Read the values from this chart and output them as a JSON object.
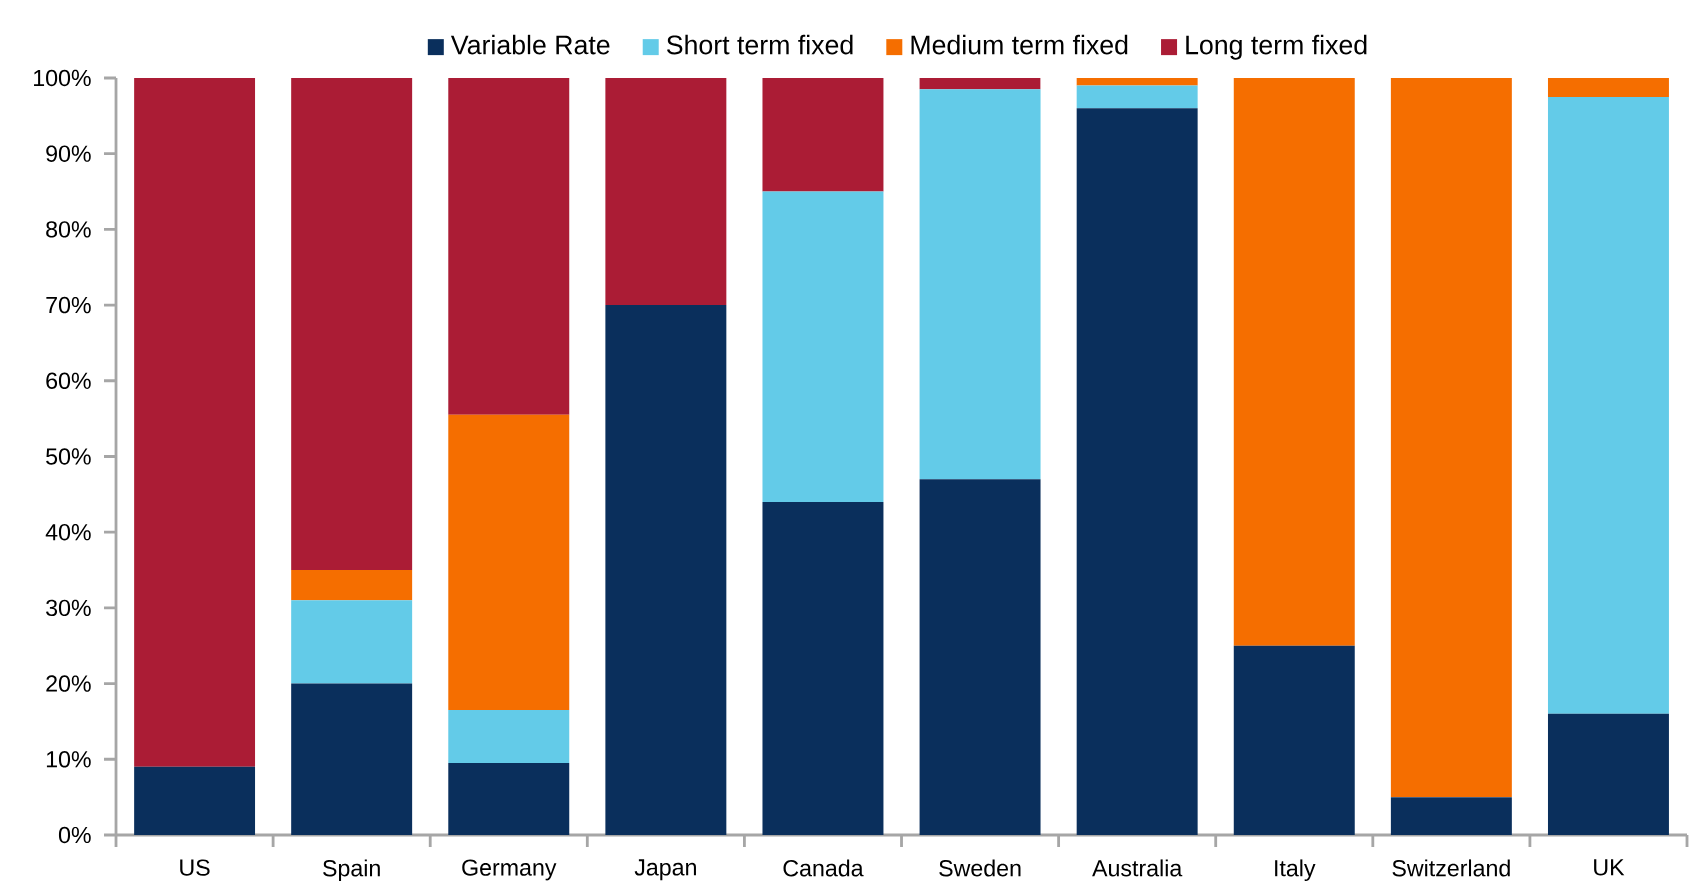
{
  "chart_data": {
    "type": "bar",
    "stacked": true,
    "legend": "top",
    "grid": false,
    "categories": [
      "US",
      "Spain",
      "Germany",
      "Japan",
      "Canada",
      "Sweden",
      "Australia",
      "Italy",
      "Switzerland",
      "UK"
    ],
    "series": [
      {
        "name": "Variable Rate",
        "color": "#0a2f5c",
        "values": [
          9,
          20,
          9.5,
          70,
          44,
          47,
          96,
          25,
          5,
          16
        ]
      },
      {
        "name": "Short term fixed",
        "color": "#63cbe8",
        "values": [
          0,
          11,
          7,
          0,
          41,
          51.5,
          3,
          0,
          0,
          81.5
        ]
      },
      {
        "name": "Medium term fixed",
        "color": "#f56e00",
        "values": [
          0,
          4,
          39,
          0,
          0,
          0,
          1,
          75,
          95,
          2.5
        ]
      },
      {
        "name": "Long term fixed",
        "color": "#ab1c35",
        "values": [
          91,
          65,
          44.5,
          30,
          15,
          1.5,
          0,
          0,
          0,
          0
        ]
      }
    ],
    "ylim": [
      0,
      100
    ],
    "yticks": [
      {
        "value": 0,
        "label": "0%"
      },
      {
        "value": 10,
        "label": "10%"
      },
      {
        "value": 20,
        "label": "20%"
      },
      {
        "value": 30,
        "label": "30%"
      },
      {
        "value": 40,
        "label": "40%"
      },
      {
        "value": 50,
        "label": "50%"
      },
      {
        "value": 60,
        "label": "60%"
      },
      {
        "value": 70,
        "label": "70%"
      },
      {
        "value": 80,
        "label": "80%"
      },
      {
        "value": 90,
        "label": "90%"
      },
      {
        "value": 100,
        "label": "100%"
      }
    ]
  }
}
